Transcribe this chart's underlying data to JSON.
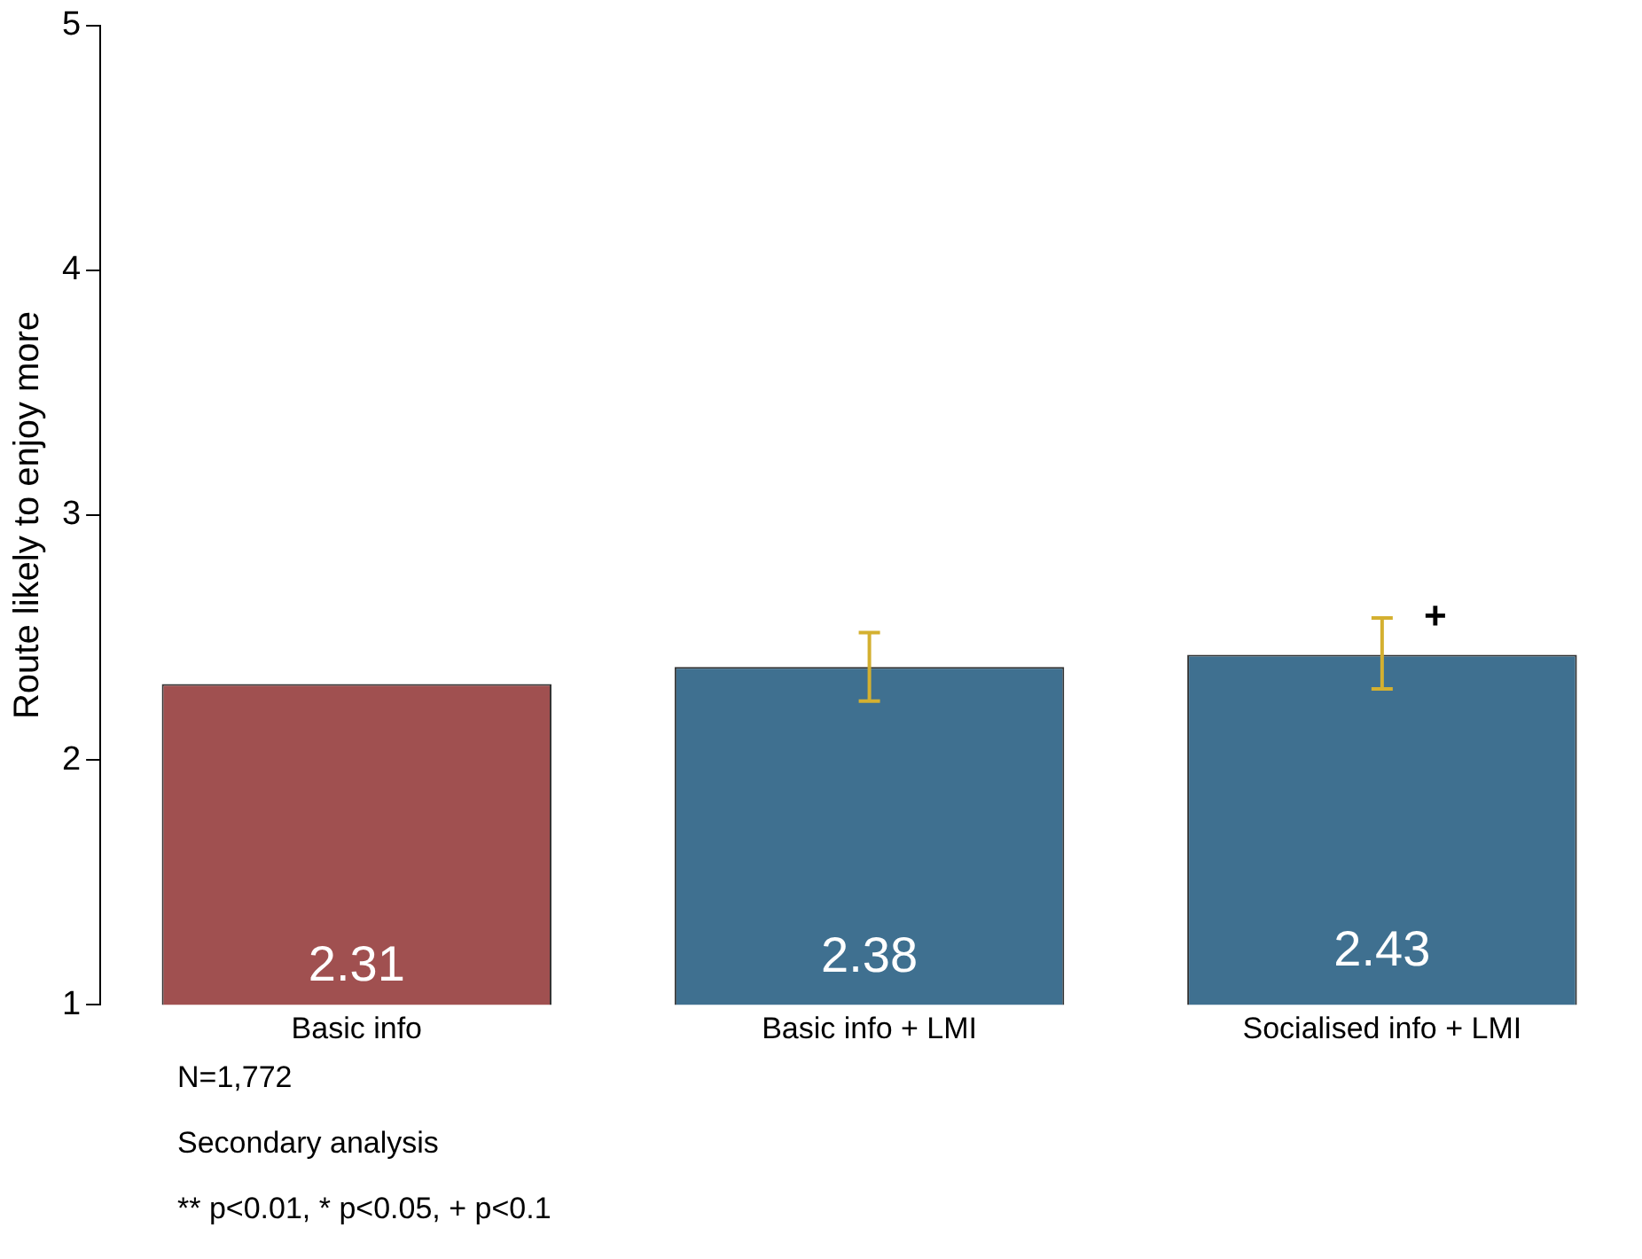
{
  "chart_data": {
    "type": "bar",
    "ylabel": "Route likely to enjoy more",
    "categories": [
      "Basic info",
      "Basic info + LMI",
      "Socialised info + LMI"
    ],
    "values": [
      2.31,
      2.38,
      2.43
    ],
    "colors": [
      "#a05050",
      "#3f7090",
      "#3f7090"
    ],
    "errors": [
      null,
      [
        2.24,
        2.52
      ],
      [
        2.29,
        2.58
      ]
    ],
    "data_labels": true,
    "ylim": [
      1,
      5
    ],
    "yticks": [
      1,
      2,
      3,
      4,
      5
    ],
    "grid": false,
    "legend": false,
    "annotations": [
      {
        "text": "+",
        "x": "Socialised info + LMI",
        "y": 2.58
      },
      "N=1,772",
      "Secondary analysis",
      "** p<0.01, * p<0.05, + p<0.1"
    ]
  }
}
